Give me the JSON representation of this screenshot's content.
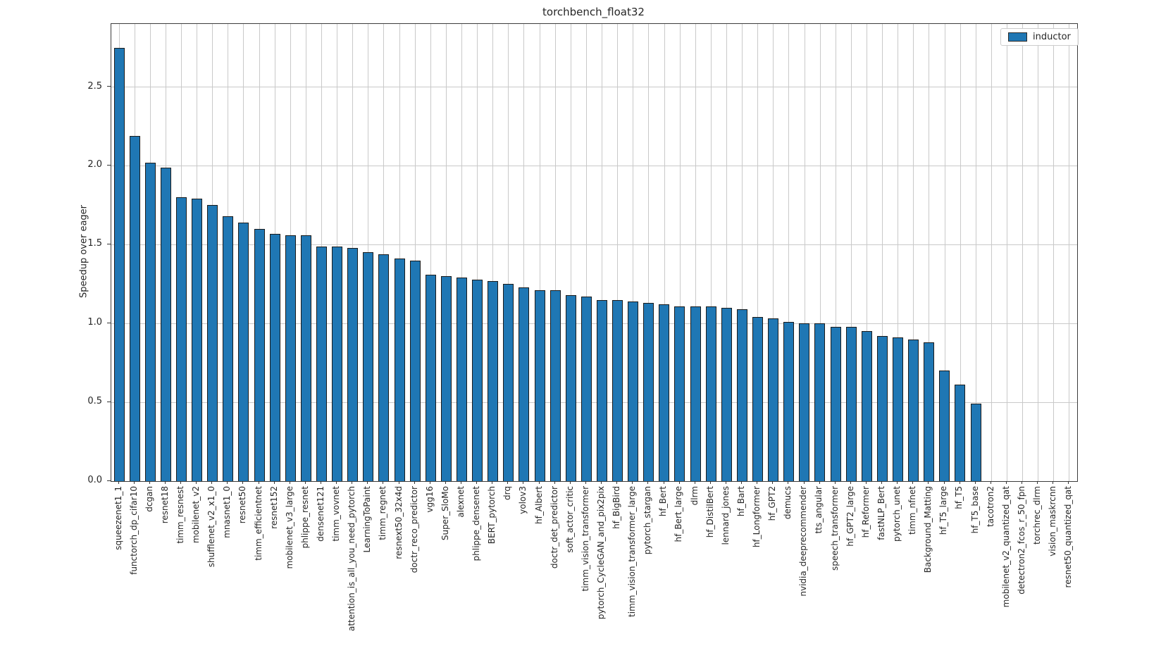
{
  "figure": {
    "title": "torchbench_float32",
    "ylabel": "Speedup over eager",
    "legend": {
      "label": "inductor",
      "swatch_color": "#1f77b4"
    }
  },
  "colors": {
    "bar_fill": "#1f77b4",
    "bar_edge": "#1b1b1b",
    "grid": "#c9c9c9",
    "spine": "#3c3c3c",
    "text": "#262626"
  },
  "chart_data": {
    "type": "bar",
    "title": "torchbench_float32",
    "xlabel": "",
    "ylabel": "Speedup over eager",
    "series_name": "inductor",
    "legend_position": "upper right",
    "grid": true,
    "ylim": [
      0,
      2.9
    ],
    "yticks": [
      0.0,
      0.5,
      1.0,
      1.5,
      2.0,
      2.5
    ],
    "ytick_labels": [
      "0.0",
      "0.5",
      "1.0",
      "1.5",
      "2.0",
      "2.5"
    ],
    "categories": [
      "squeezenet1_1",
      "functorch_dp_cifar10",
      "dcgan",
      "resnet18",
      "timm_resnest",
      "mobilenet_v2",
      "shufflenet_v2_x1_0",
      "mnasnet1_0",
      "resnet50",
      "timm_efficientnet",
      "resnet152",
      "mobilenet_v3_large",
      "phlippe_resnet",
      "densenet121",
      "timm_vovnet",
      "attention_is_all_you_need_pytorch",
      "LearningToPaint",
      "timm_regnet",
      "resnext50_32x4d",
      "doctr_reco_predictor",
      "vgg16",
      "Super_SloMo",
      "alexnet",
      "phlippe_densenet",
      "BERT_pytorch",
      "drq",
      "yolov3",
      "hf_Albert",
      "doctr_det_predictor",
      "soft_actor_critic",
      "timm_vision_transformer",
      "pytorch_CycleGAN_and_pix2pix",
      "hf_BigBird",
      "timm_vision_transformer_large",
      "pytorch_stargan",
      "hf_Bert",
      "hf_Bert_large",
      "dlrm",
      "hf_DistilBert",
      "lennard_jones",
      "hf_Bart",
      "hf_Longformer",
      "hf_GPT2",
      "demucs",
      "nvidia_deeprecommender",
      "tts_angular",
      "speech_transformer",
      "hf_GPT2_large",
      "hf_Reformer",
      "fastNLP_Bert",
      "pytorch_unet",
      "timm_nfnet",
      "Background_Matting",
      "hf_T5_large",
      "hf_T5",
      "hf_T5_base",
      "tacotron2",
      "mobilenet_v2_quantized_qat",
      "detectron2_fcos_r_50_fpn",
      "torchrec_dlrm",
      "vision_maskrcnn",
      "resnet50_quantized_qat"
    ],
    "values": [
      2.75,
      2.19,
      2.02,
      1.99,
      1.8,
      1.79,
      1.75,
      1.68,
      1.64,
      1.6,
      1.57,
      1.56,
      1.56,
      1.49,
      1.49,
      1.48,
      1.45,
      1.44,
      1.41,
      1.4,
      1.31,
      1.3,
      1.29,
      1.28,
      1.27,
      1.25,
      1.23,
      1.21,
      1.21,
      1.18,
      1.17,
      1.15,
      1.15,
      1.14,
      1.13,
      1.12,
      1.11,
      1.11,
      1.11,
      1.1,
      1.09,
      1.04,
      1.03,
      1.01,
      1.0,
      1.0,
      0.98,
      0.98,
      0.95,
      0.92,
      0.91,
      0.9,
      0.88,
      0.7,
      0.61,
      0.49,
      0,
      0,
      0,
      0,
      0,
      0
    ]
  }
}
